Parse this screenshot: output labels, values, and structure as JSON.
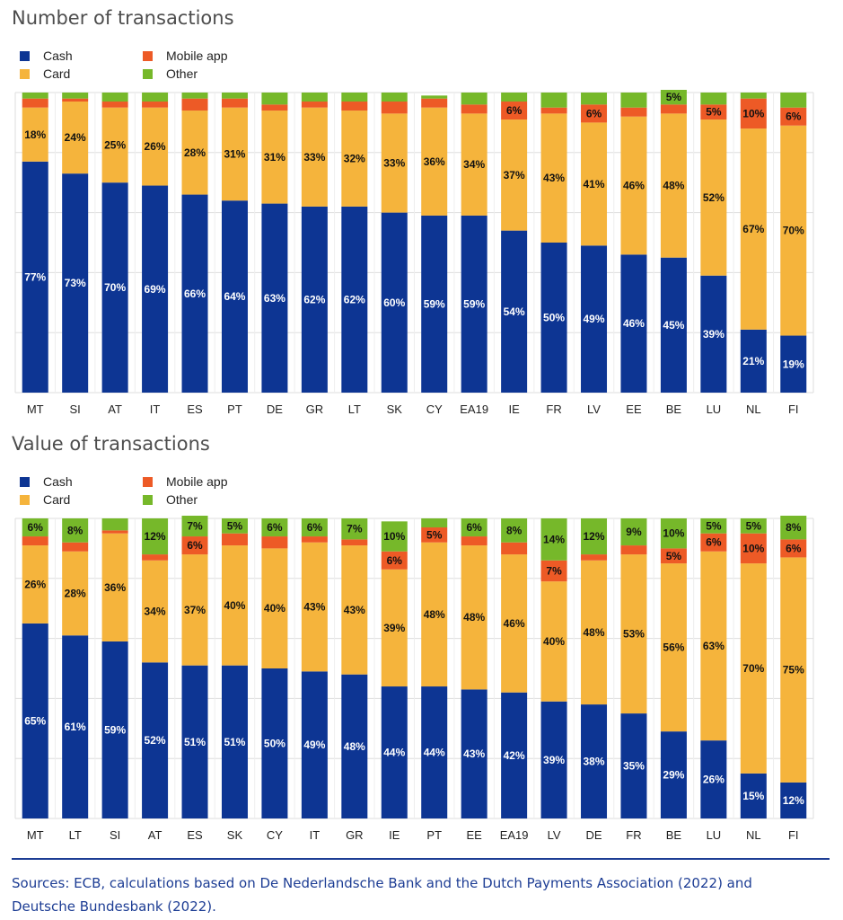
{
  "colors": {
    "cash": "#0d3593",
    "card": "#f5b43c",
    "mobile_app": "#ed5a26",
    "other": "#76b82a",
    "grid": "#dddddd",
    "label_dark": "#111111",
    "label_light": "#ffffff"
  },
  "legend": [
    {
      "key": "cash",
      "label": "Cash"
    },
    {
      "key": "card",
      "label": "Card"
    },
    {
      "key": "mobile_app",
      "label": "Mobile app"
    },
    {
      "key": "other",
      "label": "Other"
    }
  ],
  "chart_data": [
    {
      "type": "bar",
      "stacked": true,
      "title": "Number of transactions",
      "xlabel": "",
      "ylabel": "",
      "ylim": [
        0,
        100
      ],
      "grid": true,
      "legend_position": "top-left",
      "categories": [
        "MT",
        "SI",
        "AT",
        "IT",
        "ES",
        "PT",
        "DE",
        "GR",
        "LT",
        "SK",
        "CY",
        "EA19",
        "IE",
        "FR",
        "LV",
        "EE",
        "BE",
        "LU",
        "NL",
        "FI"
      ],
      "series": [
        {
          "name": "Cash",
          "key": "cash",
          "values": [
            77,
            73,
            70,
            69,
            66,
            64,
            63,
            62,
            62,
            60,
            59,
            59,
            54,
            50,
            49,
            46,
            45,
            39,
            21,
            19
          ]
        },
        {
          "name": "Card",
          "key": "card",
          "values": [
            18,
            24,
            25,
            26,
            28,
            31,
            31,
            33,
            32,
            33,
            36,
            34,
            37,
            43,
            41,
            46,
            48,
            52,
            67,
            70
          ]
        },
        {
          "name": "Mobile app",
          "key": "mobile_app",
          "values": [
            3,
            1,
            2,
            2,
            4,
            3,
            2,
            2,
            3,
            4,
            3,
            3,
            6,
            2,
            6,
            3,
            3,
            5,
            10,
            6
          ]
        },
        {
          "name": "Other",
          "key": "other",
          "values": [
            2,
            2,
            3,
            3,
            2,
            2,
            4,
            3,
            3,
            3,
            1,
            4,
            3,
            5,
            4,
            5,
            5,
            4,
            2,
            5
          ]
        }
      ],
      "data_labels": {
        "cash": [
          "77%",
          "73%",
          "70%",
          "69%",
          "66%",
          "64%",
          "63%",
          "62%",
          "62%",
          "60%",
          "59%",
          "59%",
          "54%",
          "50%",
          "49%",
          "46%",
          "45%",
          "39%",
          "21%",
          "19%"
        ],
        "card": [
          "18%",
          "24%",
          "25%",
          "26%",
          "28%",
          "31%",
          "31%",
          "33%",
          "32%",
          "33%",
          "36%",
          "34%",
          "37%",
          "43%",
          "41%",
          "46%",
          "48%",
          "52%",
          "67%",
          "70%"
        ],
        "mobile_app": [
          "",
          "",
          "",
          "",
          "",
          "",
          "",
          "",
          "",
          "",
          "",
          "",
          "6%",
          "",
          "6%",
          "",
          "",
          "5%",
          "10%",
          "6%"
        ],
        "other": [
          "",
          "",
          "",
          "",
          "",
          "",
          "",
          "",
          "",
          "",
          "",
          "",
          "",
          "",
          "",
          "",
          "5%",
          "",
          "",
          ""
        ]
      }
    },
    {
      "type": "bar",
      "stacked": true,
      "title": "Value of transactions",
      "xlabel": "",
      "ylabel": "",
      "ylim": [
        0,
        100
      ],
      "grid": true,
      "legend_position": "top-left",
      "categories": [
        "MT",
        "LT",
        "SI",
        "AT",
        "ES",
        "SK",
        "CY",
        "IT",
        "GR",
        "IE",
        "PT",
        "EE",
        "EA19",
        "LV",
        "DE",
        "FR",
        "BE",
        "LU",
        "NL",
        "FI"
      ],
      "series": [
        {
          "name": "Cash",
          "key": "cash",
          "values": [
            65,
            61,
            59,
            52,
            51,
            51,
            50,
            49,
            48,
            44,
            44,
            43,
            42,
            39,
            38,
            35,
            29,
            26,
            15,
            12
          ]
        },
        {
          "name": "Card",
          "key": "card",
          "values": [
            26,
            28,
            36,
            34,
            37,
            40,
            40,
            43,
            43,
            39,
            48,
            48,
            46,
            40,
            48,
            53,
            56,
            63,
            70,
            75
          ]
        },
        {
          "name": "Mobile app",
          "key": "mobile_app",
          "values": [
            3,
            3,
            1,
            2,
            6,
            4,
            4,
            2,
            2,
            6,
            5,
            3,
            4,
            7,
            2,
            3,
            5,
            6,
            10,
            6
          ]
        },
        {
          "name": "Other",
          "key": "other",
          "values": [
            6,
            8,
            4,
            12,
            7,
            5,
            6,
            6,
            7,
            10,
            3,
            6,
            8,
            14,
            12,
            9,
            10,
            5,
            5,
            8
          ]
        }
      ],
      "data_labels": {
        "cash": [
          "65%",
          "61%",
          "59%",
          "52%",
          "51%",
          "51%",
          "50%",
          "49%",
          "48%",
          "44%",
          "44%",
          "43%",
          "42%",
          "39%",
          "38%",
          "35%",
          "29%",
          "26%",
          "15%",
          "12%"
        ],
        "card": [
          "26%",
          "28%",
          "36%",
          "34%",
          "37%",
          "40%",
          "40%",
          "43%",
          "43%",
          "39%",
          "48%",
          "48%",
          "46%",
          "40%",
          "48%",
          "53%",
          "56%",
          "63%",
          "70%",
          "75%"
        ],
        "mobile_app": [
          "",
          "",
          "",
          "",
          "6%",
          "",
          "",
          "",
          "",
          "6%",
          "5%",
          "",
          "",
          "7%",
          "",
          "",
          "5%",
          "6%",
          "10%",
          "6%"
        ],
        "other": [
          "6%",
          "8%",
          "",
          "12%",
          "7%",
          "5%",
          "6%",
          "6%",
          "7%",
          "10%",
          "",
          "6%",
          "8%",
          "14%",
          "12%",
          "9%",
          "10%",
          "5%",
          "5%",
          "8%"
        ]
      }
    }
  ],
  "footer": {
    "sources": "Sources: ECB, calculations based on De Nederlandsche Bank and the Dutch Payments Association (2022) and Deutsche Bundesbank (2022)."
  }
}
